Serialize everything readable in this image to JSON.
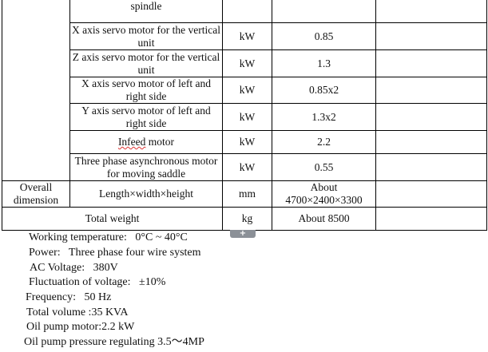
{
  "table": {
    "rows": [
      {
        "item": "spindle",
        "unit": "",
        "value": "",
        "note": ""
      },
      {
        "item": "X axis servo motor for the vertical unit",
        "unit": "kW",
        "value": "0.85",
        "note": ""
      },
      {
        "item": "Z axis servo motor for the vertical unit",
        "unit": "kW",
        "value": "1.3",
        "note": ""
      },
      {
        "item": "X axis servo motor of left and right side",
        "unit": "kW",
        "value": "0.85x2",
        "note": ""
      },
      {
        "item": "Y axis servo motor of left and right side",
        "unit": "kW",
        "value": "1.3x2",
        "note": ""
      },
      {
        "item_a": "Infeed",
        "item_b": " motor",
        "unit": "kW",
        "value": "2.2",
        "note": ""
      },
      {
        "item": "Three phase asynchronous motor for moving saddle",
        "unit": "kW",
        "value": "0.55",
        "note": ""
      }
    ],
    "dimension": {
      "category": "Overall dimension",
      "item": "Length×width×height",
      "unit": "mm",
      "value": "About 4700×2400×3300"
    },
    "weight": {
      "item": "Total weight",
      "unit": "kg",
      "value": "About 8500"
    }
  },
  "expand_button": "+",
  "notes": [
    "Working temperature:   0°C ~ 40°C",
    "Power:   Three phase four wire system",
    "AC Voltage:   380V",
    "Fluctuation of voltage:   ±10%",
    "Frequency:   50 Hz",
    "Total volume :35 KVA",
    "Oil pump motor:2.2 kW",
    "Oil pump pressure regulating 3.5～4MP"
  ]
}
